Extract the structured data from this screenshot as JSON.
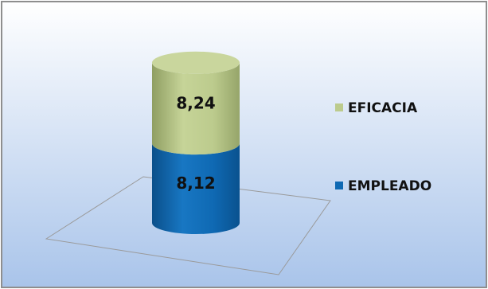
{
  "colors": {
    "background_top": "#ffffff",
    "background_bottom": "#a9c4ea",
    "frame_border": "#8e8e8e",
    "eficacia": "#bccb8d",
    "eficacia_top": "#c9d69d",
    "empleado": "#0f69b3",
    "empleado_top": "#1b78c2"
  },
  "chart_data": {
    "type": "bar",
    "stacked": true,
    "three_d_cylinder": true,
    "categories": [
      ""
    ],
    "series": [
      {
        "name": "EMPLEADO",
        "values": [
          8.12
        ],
        "label": "8,12",
        "color": "#0f69b3"
      },
      {
        "name": "EFICACIA",
        "values": [
          8.24
        ],
        "label": "8,24",
        "color": "#bccb8d"
      }
    ],
    "title": "",
    "xlabel": "",
    "ylabel": "",
    "ylim": [
      0,
      16.36
    ],
    "grid": false,
    "legend_position": "right"
  }
}
